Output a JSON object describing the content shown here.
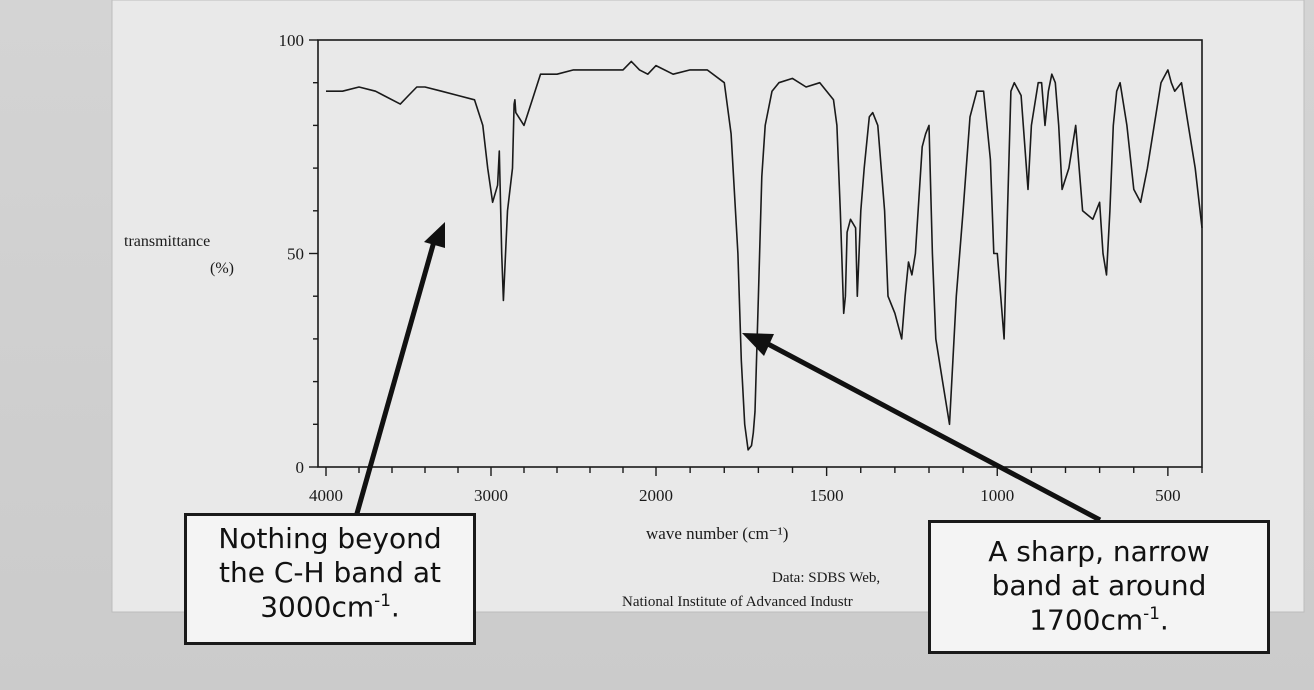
{
  "chart_data": {
    "type": "line",
    "xlabel": "wave number (cm⁻¹)",
    "ylabel_line1": "transmittance",
    "ylabel_line2": "(%)",
    "x_ticks": [
      "4000",
      "3000",
      "2000",
      "1500",
      "1000",
      "500"
    ],
    "y_ticks": [
      "100",
      "50",
      "0"
    ],
    "xlim": [
      4000,
      400
    ],
    "x_scale": "ir-split: 4000-2000 compressed, 2000-400 expanded",
    "ylim": [
      0,
      100
    ],
    "grid": false,
    "series": [
      {
        "x": [
          4000,
          3900,
          3800,
          3700,
          3550,
          3500,
          3450,
          3400,
          3300,
          3200,
          3100,
          3050,
          3020,
          2990,
          2960,
          2950,
          2935,
          2925,
          2900,
          2870,
          2860,
          2855,
          2850,
          2800,
          2750,
          2700,
          2600,
          2500,
          2400,
          2300,
          2200,
          2150,
          2100,
          2050,
          2000,
          1950,
          1900,
          1850,
          1800,
          1780,
          1760,
          1750,
          1740,
          1730,
          1720,
          1715,
          1710,
          1700,
          1690,
          1680,
          1660,
          1640,
          1600,
          1560,
          1520,
          1480,
          1470,
          1460,
          1450,
          1445,
          1440,
          1430,
          1415,
          1410,
          1400,
          1390,
          1375,
          1365,
          1350,
          1330,
          1320,
          1300,
          1280,
          1270,
          1260,
          1250,
          1240,
          1220,
          1210,
          1200,
          1190,
          1180,
          1160,
          1140,
          1130,
          1120,
          1110,
          1100,
          1080,
          1060,
          1040,
          1030,
          1020,
          1010,
          1000,
          990,
          980,
          970,
          960,
          950,
          930,
          910,
          900,
          880,
          870,
          860,
          850,
          840,
          830,
          820,
          810,
          790,
          770,
          750,
          720,
          700,
          690,
          680,
          670,
          660,
          650,
          640,
          620,
          600,
          580,
          560,
          540,
          520,
          500,
          490,
          480,
          460,
          440,
          420,
          400
        ],
        "y": [
          88,
          88,
          89,
          88,
          85,
          87,
          89,
          89,
          88,
          87,
          86,
          80,
          70,
          62,
          66,
          74,
          50,
          39,
          60,
          70,
          85,
          86,
          83,
          80,
          86,
          92,
          92,
          93,
          93,
          93,
          93,
          95,
          93,
          92,
          94,
          92,
          93,
          93,
          90,
          78,
          50,
          25,
          10,
          4,
          5,
          8,
          13,
          40,
          68,
          80,
          88,
          90,
          91,
          89,
          90,
          86,
          80,
          60,
          36,
          40,
          55,
          58,
          56,
          40,
          60,
          70,
          82,
          83,
          80,
          60,
          40,
          36,
          30,
          40,
          48,
          45,
          50,
          75,
          78,
          80,
          50,
          30,
          20,
          10,
          25,
          40,
          50,
          60,
          82,
          88,
          88,
          80,
          72,
          50,
          50,
          40,
          30,
          60,
          88,
          90,
          87,
          65,
          80,
          90,
          90,
          80,
          88,
          92,
          90,
          80,
          65,
          70,
          80,
          60,
          58,
          62,
          50,
          45,
          60,
          80,
          88,
          90,
          80,
          65,
          62,
          70,
          80,
          90,
          93,
          90,
          88,
          90,
          80,
          70,
          56
        ]
      }
    ]
  },
  "credit_line1": "Data: SDBS Web,",
  "credit_line2": "National Institute of Advanced Industr",
  "callout_left": {
    "line1": "Nothing beyond",
    "line2": "the C-H band at",
    "line3_value": "3000cm",
    "line3_sup": "-1",
    "line3_end": "."
  },
  "callout_right": {
    "line1": "A sharp, narrow",
    "line2": "band at around",
    "line3_value": "1700cm",
    "line3_sup": "-1",
    "line3_end": "."
  },
  "colors": {
    "ink": "#1a1a1a",
    "paper": "#e9e9e9",
    "callout_bg": "#f4f4f4"
  }
}
